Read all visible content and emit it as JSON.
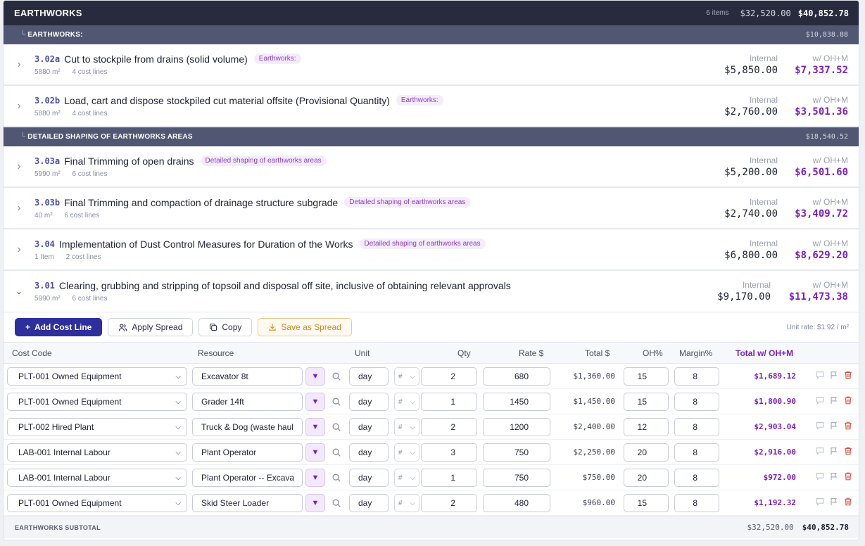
{
  "section": {
    "title": "EARTHWORKS",
    "items_count": "6 items",
    "internal_total": "$32,520.00",
    "total": "$40,852.78"
  },
  "groups": [
    {
      "title": "EARTHWORKS:",
      "total": "$10,838.88",
      "items": [
        {
          "code": "3.02a",
          "name": "Cut to stockpile from drains (solid volume)",
          "tag": "Earthworks:",
          "qty": "5880 m²",
          "cost_lines": "4 cost lines",
          "internal_label": "Internal",
          "internal": "$5,850.00",
          "ohm_label": "w/ OH+M",
          "ohm": "$7,337.52"
        },
        {
          "code": "3.02b",
          "name": "Load, cart and dispose stockpiled cut material offsite (Provisional Quantity)",
          "tag": "Earthworks:",
          "qty": "5880 m²",
          "cost_lines": "4 cost lines",
          "internal_label": "Internal",
          "internal": "$2,760.00",
          "ohm_label": "w/ OH+M",
          "ohm": "$3,501.36"
        }
      ]
    },
    {
      "title": "DETAILED SHAPING OF EARTHWORKS AREAS",
      "total": "$18,540.52",
      "items": [
        {
          "code": "3.03a",
          "name": "Final Trimming of open drains",
          "tag": "Detailed shaping of earthworks areas",
          "qty": "5990 m²",
          "cost_lines": "6 cost lines",
          "internal_label": "Internal",
          "internal": "$5,200.00",
          "ohm_label": "w/ OH+M",
          "ohm": "$6,501.60"
        },
        {
          "code": "3.03b",
          "name": "Final Trimming and compaction of drainage structure subgrade",
          "tag": "Detailed shaping of earthworks areas",
          "qty": "40 m²",
          "cost_lines": "6 cost lines",
          "internal_label": "Internal",
          "internal": "$2,740.00",
          "ohm_label": "w/ OH+M",
          "ohm": "$3,409.72"
        },
        {
          "code": "3.04",
          "name": "Implementation of Dust Control Measures for Duration of the Works",
          "tag": "Detailed shaping of earthworks areas",
          "qty": "1 Item",
          "cost_lines": "2 cost lines",
          "internal_label": "Internal",
          "internal": "$6,800.00",
          "ohm_label": "w/ OH+M",
          "ohm": "$8,629.20"
        }
      ]
    }
  ],
  "expanded_item": {
    "code": "3.01",
    "name": "Clearing, grubbing and stripping of topsoil and disposal off site, inclusive of obtaining relevant approvals",
    "qty": "5990 m²",
    "cost_lines": "6 cost lines",
    "internal_label": "Internal",
    "internal": "$9,170.00",
    "ohm_label": "w/ OH+M",
    "ohm": "$11,473.38"
  },
  "toolbar": {
    "add_cost_line": "Add Cost Line",
    "apply_spread": "Apply Spread",
    "copy": "Copy",
    "save_as_spread": "Save as Spread",
    "unit_rate": "Unit rate: $1.92 / m²"
  },
  "columns": {
    "cost_code": "Cost Code",
    "resource": "Resource",
    "unit": "Unit",
    "qty": "Qty",
    "rate": "Rate $",
    "total": "Total $",
    "oh": "OH%",
    "margin": "Margin%",
    "total_ohm": "Total w/ OH+M"
  },
  "cost_lines": [
    {
      "cost_code": "PLT-001 Owned Equipment",
      "resource": "Excavator 8t",
      "unit": "day",
      "unit_type": "#",
      "qty": "2",
      "rate": "680",
      "total": "$1,360.00",
      "oh": "15",
      "margin": "8",
      "total_ohm": "$1,689.12"
    },
    {
      "cost_code": "PLT-001 Owned Equipment",
      "resource": "Grader 14ft",
      "unit": "day",
      "unit_type": "#",
      "qty": "1",
      "rate": "1450",
      "total": "$1,450.00",
      "oh": "15",
      "margin": "8",
      "total_ohm": "$1,800.90"
    },
    {
      "cost_code": "PLT-002 Hired Plant",
      "resource": "Truck & Dog (waste haul",
      "unit": "day",
      "unit_type": "#",
      "qty": "2",
      "rate": "1200",
      "total": "$2,400.00",
      "oh": "12",
      "margin": "8",
      "total_ohm": "$2,903.04"
    },
    {
      "cost_code": "LAB-001 Internal Labour",
      "resource": "Plant Operator",
      "unit": "day",
      "unit_type": "#",
      "qty": "3",
      "rate": "750",
      "total": "$2,250.00",
      "oh": "20",
      "margin": "8",
      "total_ohm": "$2,916.00"
    },
    {
      "cost_code": "LAB-001 Internal Labour",
      "resource": "Plant Operator -- Excava",
      "unit": "day",
      "unit_type": "#",
      "qty": "1",
      "rate": "750",
      "total": "$750.00",
      "oh": "20",
      "margin": "8",
      "total_ohm": "$972.00"
    },
    {
      "cost_code": "PLT-001 Owned Equipment",
      "resource": "Skid Steer Loader",
      "unit": "day",
      "unit_type": "#",
      "qty": "2",
      "rate": "480",
      "total": "$960.00",
      "oh": "15",
      "margin": "8",
      "total_ohm": "$1,192.32"
    }
  ],
  "subtotal": {
    "title": "EARTHWORKS SUBTOTAL",
    "internal": "$32,520.00",
    "total": "$40,852.78"
  },
  "colors": {
    "header_bg": "#272b3d",
    "group_bg": "#515772",
    "accent_purple": "#7b1fc2",
    "primary_button": "#2e2e9c",
    "code_blue": "#4a4fb0"
  }
}
